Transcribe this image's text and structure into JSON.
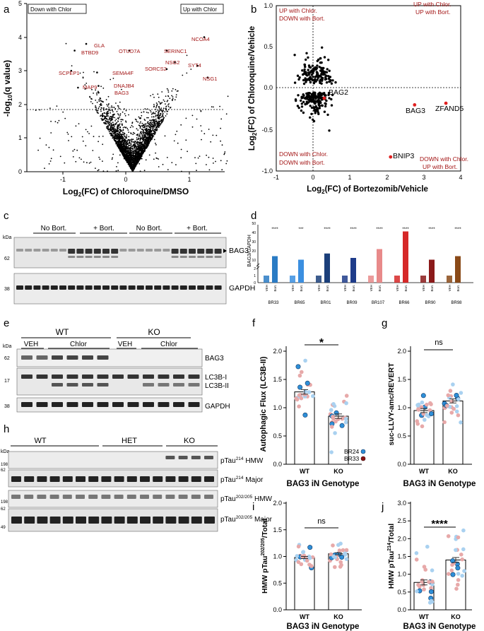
{
  "panels": {
    "a": "a",
    "b": "b",
    "c": "c",
    "d": "d",
    "e": "e",
    "f": "f",
    "g": "g",
    "h": "h",
    "i": "i",
    "j": "j"
  },
  "volcano": {
    "box_left": "Down with Chlor",
    "box_right": "Up with Chlor",
    "xlabel_pre": "Log",
    "xlabel_sub": "2",
    "xlabel_post": "(FC) of Chloroquine/DMSO",
    "ylabel_pre": "-log",
    "ylabel_sub": "10",
    "ylabel_post": "(q value)",
    "genes": [
      "NCOA4",
      "GLA",
      "OTUD7A",
      "SERINC1",
      "BTBD9",
      "NSG2",
      "SORCS2",
      "SYT4",
      "SCPEP1",
      "SEMA4F",
      "NSG1",
      "DNAJB4",
      "MAP9",
      "BAG3"
    ],
    "label_color": "#a31515",
    "threshold_y": 1.3
  },
  "scatter_b": {
    "q_ul": [
      "UP with Chlor.",
      "DOWN with Bort."
    ],
    "q_ur": [
      "UP with Chlor.",
      "UP with Bort."
    ],
    "q_ll": [
      "DOWN with Chlor.",
      "DOWN with Bort."
    ],
    "q_lr": [
      "DOWN with Chlor.",
      "UP with Bort."
    ],
    "labels": [
      "BAG2",
      "BAG3",
      "ZFAND5",
      "BNIP3"
    ],
    "xlabel_pre": "Log",
    "xlabel_sub": "2",
    "xlabel_post": "(FC) of Bortezomib/Vehicle",
    "ylabel_pre": "Log",
    "ylabel_sub": "2",
    "ylabel_post": "(FC) of Chloroquine/Vehicle"
  },
  "blot_c": {
    "groups": [
      "No Bort.",
      "+ Bort.",
      "No Bort.",
      "+ Bort."
    ],
    "kda": "kDa",
    "m1": "62",
    "m2": "38",
    "bands": [
      "BAG3",
      "GAPDH"
    ]
  },
  "bar_d": {
    "ylabel": "BAG3/GAPDH",
    "lines": [
      "BR33",
      "BR65",
      "BR01",
      "BR09",
      "BR107",
      "BR66",
      "BR90",
      "BR98"
    ],
    "conds": [
      "VEH",
      "Bort."
    ],
    "sig": "****",
    "sig3": "***"
  },
  "blot_e": {
    "genotypes": [
      "WT",
      "KO"
    ],
    "conds": [
      "VEH",
      "Chlor",
      "VEH",
      "Chlor"
    ],
    "kda": "kDa",
    "m1": "62",
    "m2": "17",
    "m3": "38",
    "bands": [
      "BAG3",
      "LC3B-I",
      "LC3B-II",
      "GAPDH"
    ]
  },
  "blot_h": {
    "genotypes": [
      "WT",
      "HET",
      "KO"
    ],
    "kda": "kDa",
    "markers": [
      "198",
      "62",
      "198",
      "62",
      "49"
    ],
    "band1_pre": "pTau",
    "band1_sup": "214",
    "band1_post": " HMW",
    "band2_pre": "pTau",
    "band2_sup": "214",
    "band2_post": " Major",
    "band3_pre": "pTau",
    "band3_sup": "202/205",
    "band3_post": " HMW",
    "band4_pre": "pTau",
    "band4_sup": "202/205",
    "band4_post": " Major"
  },
  "panel_f": {
    "ylabel": "Autophagic Flux (LC3B-II)",
    "xlabel": "BAG3 iN Genotype",
    "cats": [
      "WT",
      "KO"
    ],
    "sig": "*",
    "legend": [
      "BR24",
      "BR33"
    ],
    "yticks": [
      "0.0",
      "0.5",
      "1.0",
      "1.5",
      "2.0"
    ]
  },
  "panel_g": {
    "ylabel": "suc-LLVY-amc/REVERT",
    "xlabel": "BAG3 iN Genotype",
    "cats": [
      "WT",
      "KO"
    ],
    "sig": "ns",
    "yticks": [
      "0.0",
      "0.5",
      "1.0",
      "1.5",
      "2.0"
    ]
  },
  "panel_i": {
    "ylabel_pre": "HMW pTau",
    "ylabel_sup": "202/205",
    "ylabel_post": "/Total",
    "xlabel": "BAG3 iN Genotype",
    "cats": [
      "WT",
      "KO"
    ],
    "sig": "ns",
    "yticks": [
      "0.0",
      "0.5",
      "1.0",
      "1.5",
      "2.0"
    ]
  },
  "panel_j": {
    "ylabel_pre": "HMW pTau",
    "ylabel_sup": "214",
    "ylabel_post": "/Total",
    "xlabel": "BAG3 iN Genotype",
    "cats": [
      "WT",
      "KO"
    ],
    "sig": "****",
    "yticks": [
      "0.0",
      "0.5",
      "1.0",
      "1.5",
      "2.0",
      "2.5",
      "3.0"
    ]
  },
  "chart_data": [
    {
      "type": "scatter",
      "name": "a",
      "x_ticks": [
        "-1",
        "0",
        "1"
      ],
      "y_ticks": [
        "0",
        "1",
        "2",
        "3",
        "4",
        "5"
      ],
      "xlim": [
        -1.55,
        1.35
      ],
      "ylim": [
        0,
        5
      ],
      "highlighted": [
        {
          "label": "NCOA4",
          "x": 1.05,
          "y": 4.0
        },
        {
          "label": "GLA",
          "x": -0.68,
          "y": 3.8
        },
        {
          "label": "OTUD7A",
          "x": -0.05,
          "y": 3.6
        },
        {
          "label": "SERINC1",
          "x": 0.5,
          "y": 3.6
        },
        {
          "label": "BTBD9",
          "x": -0.85,
          "y": 3.6
        },
        {
          "label": "NSG2",
          "x": 0.62,
          "y": 3.25
        },
        {
          "label": "SORCS2",
          "x": 0.5,
          "y": 3.05
        },
        {
          "label": "SYT4",
          "x": 0.95,
          "y": 3.15
        },
        {
          "label": "SCPEP1",
          "x": -0.9,
          "y": 3.0
        },
        {
          "label": "SEMA4F",
          "x": -0.52,
          "y": 2.95
        },
        {
          "label": "NSG1",
          "x": 1.1,
          "y": 2.8
        },
        {
          "label": "DNAJB4",
          "x": -0.5,
          "y": 2.55
        },
        {
          "label": "MAP9",
          "x": -0.8,
          "y": 2.5
        },
        {
          "label": "BAG3",
          "x": -0.5,
          "y": 2.35
        }
      ]
    },
    {
      "type": "scatter",
      "name": "b",
      "x_ticks": [
        "-1",
        "0",
        "1",
        "2",
        "3",
        "4"
      ],
      "y_ticks": [
        "-1.0",
        "-0.5",
        "0.0",
        "0.5",
        "1.0"
      ],
      "xlim": [
        -1,
        4
      ],
      "ylim": [
        -1,
        1
      ],
      "highlighted": [
        {
          "label": "BAG2",
          "x": 0.3,
          "y": -0.12
        },
        {
          "label": "BAG3",
          "x": 2.75,
          "y": -0.2
        },
        {
          "label": "ZFAND5",
          "x": 3.6,
          "y": -0.18
        },
        {
          "label": "BNIP3",
          "x": 2.1,
          "y": -0.83
        }
      ]
    },
    {
      "type": "bar",
      "name": "d",
      "categories": [
        "BR33",
        "BR65",
        "BR01",
        "BR09",
        "BR107",
        "BR66",
        "BR90",
        "BR98"
      ],
      "series": [
        {
          "name": "VEH",
          "values": [
            1,
            1,
            1,
            1,
            1,
            1,
            1,
            1
          ]
        },
        {
          "name": "Bort.",
          "values": [
            16,
            12,
            19,
            14,
            24,
            44,
            12,
            16
          ]
        }
      ],
      "colors": [
        "#2a7bc4",
        "#3b8fe0",
        "#1b3f7a",
        "#1f3c8a",
        "#e88a8a",
        "#d62828",
        "#8b1a1a",
        "#8a4a18"
      ],
      "y_ticks": [
        "0",
        "1",
        "2",
        "10",
        "20",
        "30",
        "40",
        "50"
      ]
    },
    {
      "type": "bar",
      "name": "f",
      "categories": [
        "WT",
        "KO"
      ],
      "values": [
        1.28,
        0.85
      ],
      "ylim": [
        0,
        2.0
      ]
    },
    {
      "type": "bar",
      "name": "g",
      "categories": [
        "WT",
        "KO"
      ],
      "values": [
        0.95,
        1.12
      ],
      "ylim": [
        0,
        2.0
      ]
    },
    {
      "type": "bar",
      "name": "i",
      "categories": [
        "WT",
        "KO"
      ],
      "values": [
        0.98,
        1.05
      ],
      "ylim": [
        0,
        2.0
      ]
    },
    {
      "type": "bar",
      "name": "j",
      "categories": [
        "WT",
        "KO"
      ],
      "values": [
        0.77,
        1.4
      ],
      "ylim": [
        0,
        3.0
      ]
    }
  ]
}
